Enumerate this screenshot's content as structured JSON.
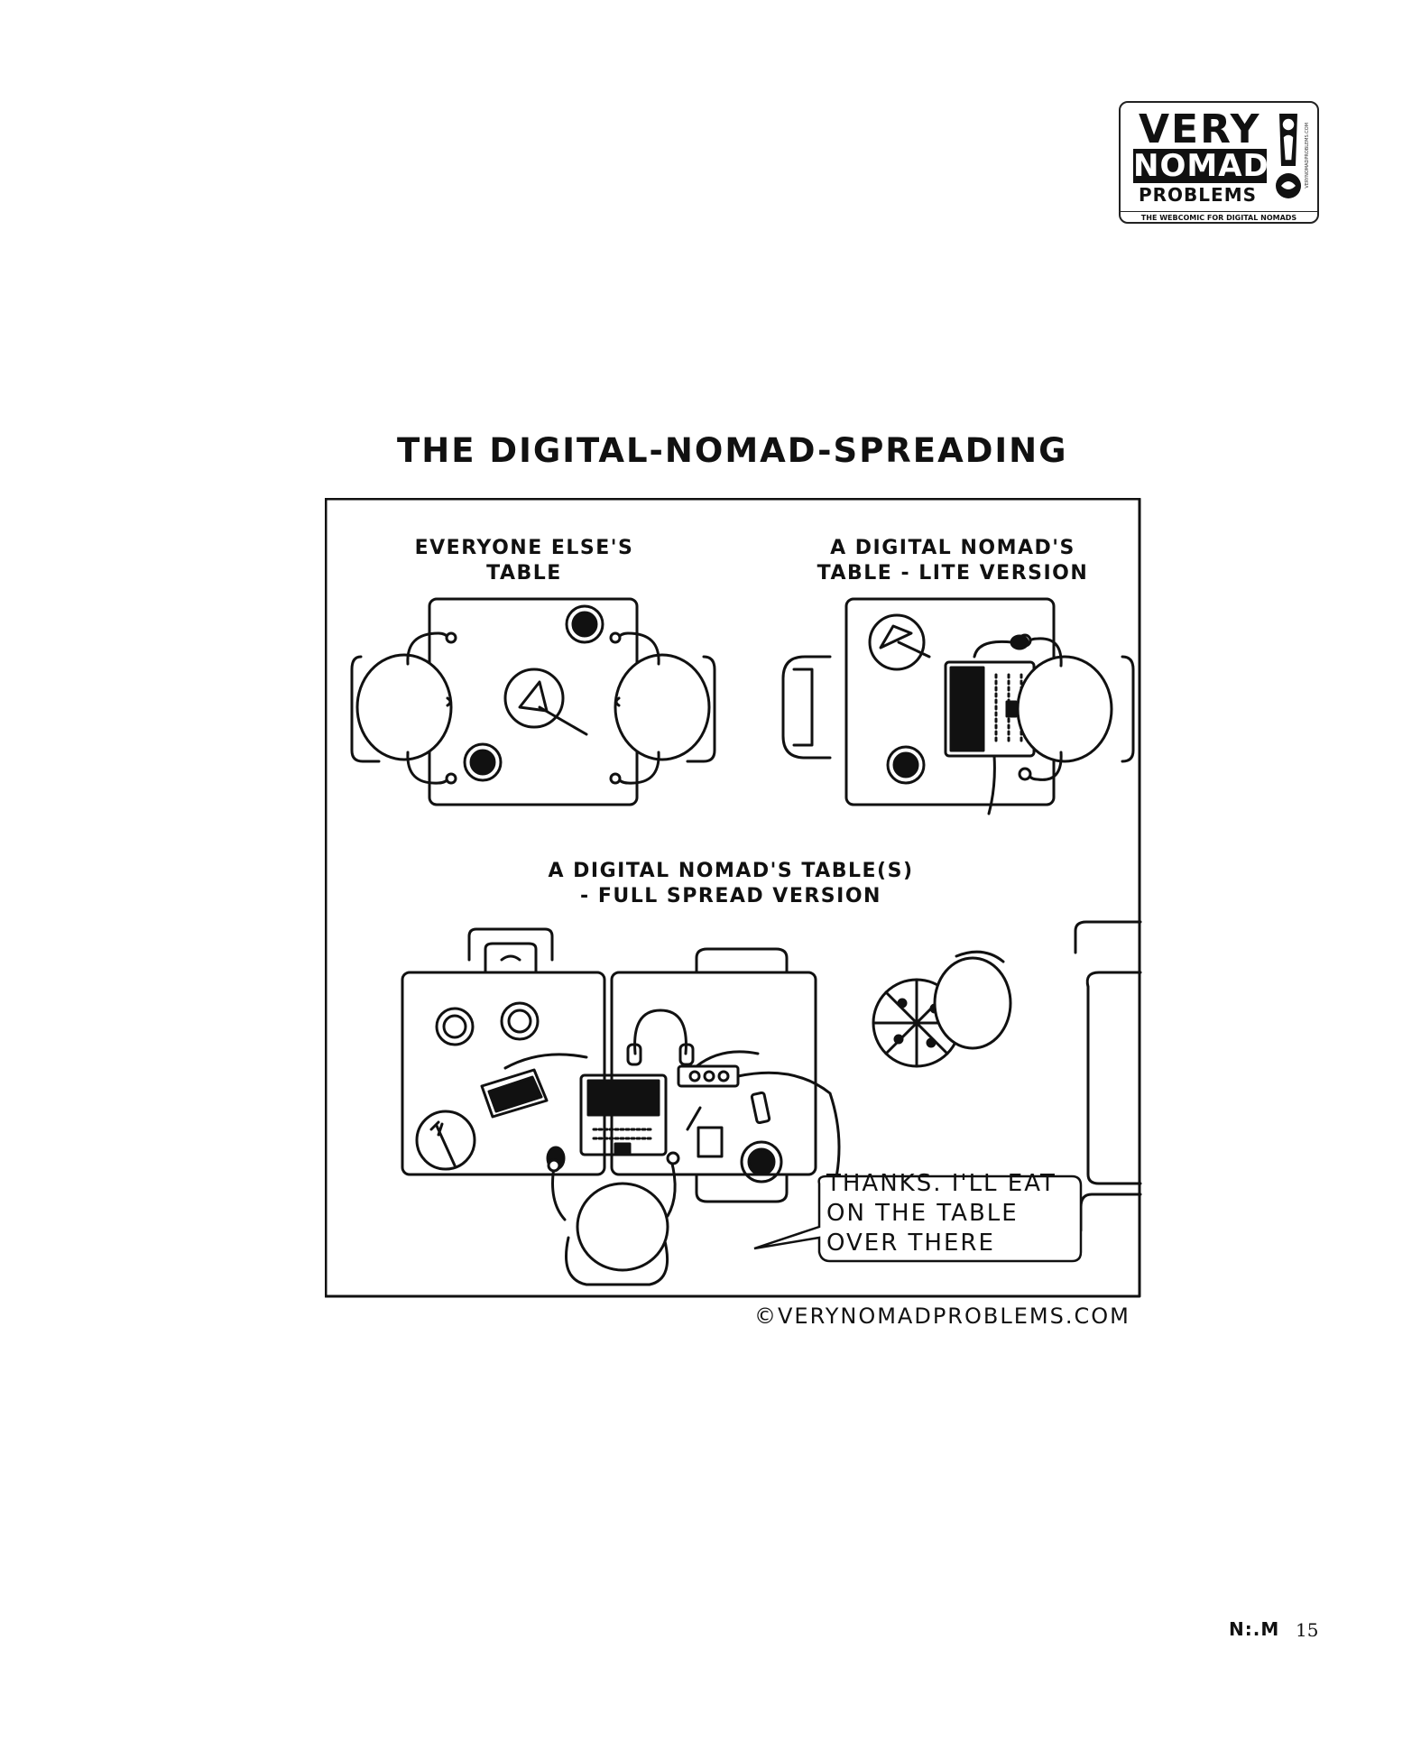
{
  "logo": {
    "line1": "VERY",
    "line2": "NOMAD",
    "line3": "PROBLEMS",
    "tagline": "THE WEBCOMIC FOR DIGITAL NOMADS",
    "vertical_text": "VERYNOMADPROBLEMS.COM"
  },
  "comic": {
    "title": "THE DIGITAL-NOMAD-SPREADING",
    "panel1_label_line1": "EVERYONE ELSE'S",
    "panel1_label_line2": "TABLE",
    "panel2_label_line1": "A DIGITAL NOMAD'S",
    "panel2_label_line2": "TABLE - LITE VERSION",
    "panel3_label_line1": "A DIGITAL NOMAD'S TABLE(S)",
    "panel3_label_line2": "- FULL SPREAD VERSION",
    "bubble_line1": "THANKS. I'LL EAT",
    "bubble_line2": "ON THE TABLE",
    "bubble_line3": "OVER THERE",
    "copyright": "©VERYNOMADPROBLEMS.COM"
  },
  "footer": {
    "publisher_mark": "N:.M",
    "page_number": "15"
  }
}
